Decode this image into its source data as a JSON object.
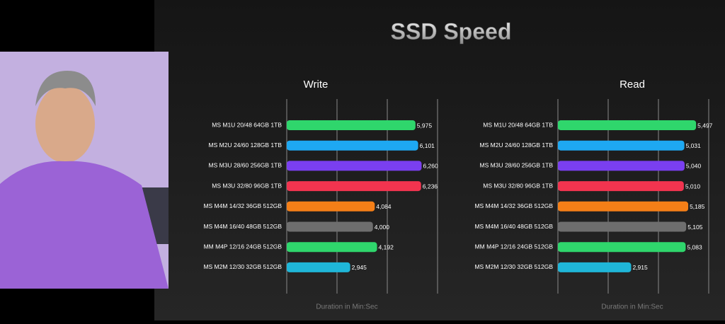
{
  "title": "SSD Speed",
  "chart_data": [
    {
      "type": "bar",
      "orientation": "horizontal",
      "title": "Write",
      "xlabel": "Duration in Min:Sec",
      "categories": [
        "MS M1U 20/48 64GB 1TB",
        "MS M2U 24/60 128GB 1TB",
        "MS M3U 28/60 256GB 1TB",
        "MS M3U 32/80 96GB 1TB",
        "MS M4M 14/32 36GB 512GB",
        "MS M4M 16/40 48GB 512GB",
        "MM M4P 12/16 24GB 512GB",
        "MS M2M 12/30 32GB 512GB"
      ],
      "values": [
        5975,
        6101,
        6260,
        6236,
        4084,
        4000,
        4192,
        2945
      ],
      "value_labels": [
        "5,975",
        "6,101",
        "6,260",
        "6,236",
        "4,084",
        "4,000",
        "4,192",
        "2,945"
      ],
      "colors": [
        "#2fd66c",
        "#1ea8f2",
        "#7a3ff0",
        "#f2344f",
        "#f57f17",
        "#6e6e6e",
        "#2fd66c",
        "#1fb6d8"
      ],
      "xlim": [
        0,
        7000
      ],
      "xticks": [
        0,
        2333,
        4667,
        7000
      ],
      "grid": true
    },
    {
      "type": "bar",
      "orientation": "horizontal",
      "title": "Read",
      "xlabel": "Duration in Min:Sec",
      "categories": [
        "MS M1U 20/48 64GB 1TB",
        "MS M2U 24/60 128GB 1TB",
        "MS M3U 28/60 256GB 1TB",
        "MS M3U 32/80 96GB 1TB",
        "MS M4M 14/32 36GB 512GB",
        "MS M4M 16/40 48GB 512GB",
        "MM M4P 12/16 24GB 512GB",
        "MS M2M 12/30 32GB 512GB"
      ],
      "values": [
        5497,
        5031,
        5040,
        5010,
        5185,
        5105,
        5083,
        2915
      ],
      "value_labels": [
        "5,497",
        "5,031",
        "5,040",
        "5,010",
        "5,185",
        "5,105",
        "5,083",
        "2,915"
      ],
      "colors": [
        "#2fd66c",
        "#1ea8f2",
        "#7a3ff0",
        "#f2344f",
        "#f57f17",
        "#6e6e6e",
        "#2fd66c",
        "#1fb6d8"
      ],
      "xlim": [
        0,
        6000
      ],
      "xticks": [
        0,
        2000,
        4000,
        6000
      ],
      "grid": true
    }
  ]
}
